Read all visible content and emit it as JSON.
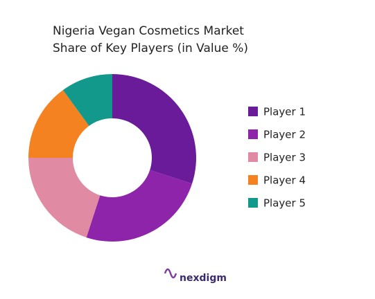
{
  "chart_data": {
    "type": "donut",
    "title": [
      "Nigeria Vegan Cosmetics Market",
      "Share of Key Players (in Value %)"
    ],
    "categories": [
      "Player 1",
      "Player 2",
      "Player 3",
      "Player 4",
      "Player 5"
    ],
    "values": [
      30,
      25,
      20,
      15,
      10
    ],
    "colors": [
      "#6a1b9a",
      "#8e24aa",
      "#e08ba3",
      "#f58220",
      "#12998c"
    ],
    "legend": "right",
    "watermark": "nexdigm"
  }
}
